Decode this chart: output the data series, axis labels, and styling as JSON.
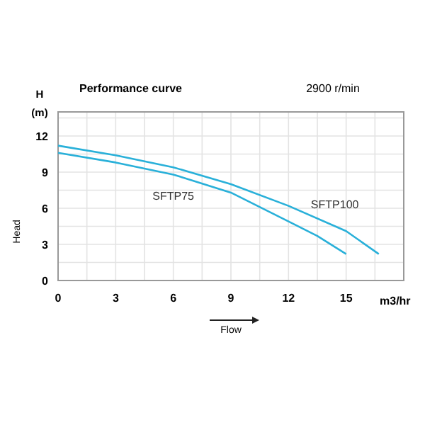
{
  "chart_data": {
    "type": "line",
    "title": "Performance curve",
    "subtitle": "2900 r/min",
    "xlabel": "Flow",
    "ylabel": "Head",
    "annotations": [
      "H",
      "(m)",
      "m3/hr"
    ],
    "xlim": [
      0,
      18
    ],
    "xticks": [
      0,
      {
        "value": 1.5,
        "label": null
      },
      3,
      {
        "value": 4.5,
        "label": null
      },
      6,
      {
        "value": 7.5,
        "label": null
      },
      9,
      {
        "value": 10.5,
        "label": null
      },
      12,
      {
        "value": 13.5,
        "label": null
      },
      15,
      {
        "value": 16.5,
        "label": null
      }
    ],
    "ylim": [
      0,
      14
    ],
    "yticks": [
      0,
      {
        "value": 1.5,
        "label": null
      },
      3,
      {
        "value": 4.5,
        "label": null
      },
      6,
      {
        "value": 7.5,
        "label": null
      },
      9,
      {
        "value": 10.5,
        "label": null
      },
      12,
      {
        "value": 13.5,
        "label": null
      }
    ],
    "grid": true,
    "marker": "none",
    "line_style": "solid",
    "series": [
      {
        "name": "SFTP75",
        "color": "#29b0d9",
        "x": [
          0,
          3,
          6,
          9,
          12,
          13.5,
          15
        ],
        "values": [
          10.6,
          9.8,
          8.8,
          7.3,
          4.9,
          3.7,
          2.2
        ]
      },
      {
        "name": "SFTP100",
        "color": "#29b0d9",
        "x": [
          0,
          3,
          6,
          9,
          12,
          15,
          16.7
        ],
        "values": [
          11.2,
          10.4,
          9.4,
          8.0,
          6.2,
          4.1,
          2.2
        ]
      }
    ]
  }
}
